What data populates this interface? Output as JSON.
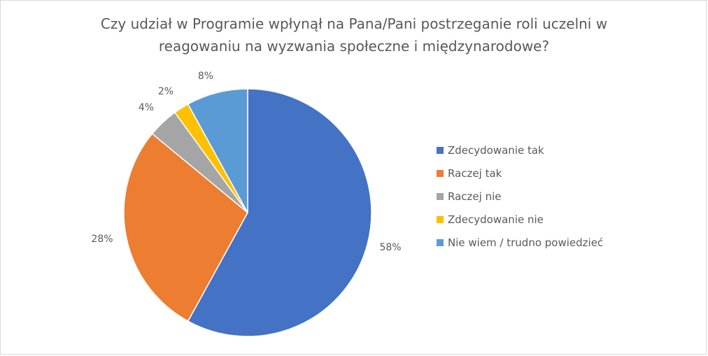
{
  "chart_data": {
    "type": "pie",
    "title_lines": [
      "Czy udział w Programie wpłynął na Pana/Pani postrzeganie roli uczelni w",
      "reagowaniu na wyzwania społeczne i międzynarodowe?"
    ],
    "categories": [
      "Zdecydowanie tak",
      "Raczej tak",
      "Raczej nie",
      "Zdecydowanie nie",
      "Nie wiem / trudno powiedzieć"
    ],
    "values": [
      58,
      28,
      4,
      2,
      8
    ],
    "labels": [
      "58%",
      "28%",
      "4%",
      "2%",
      "8%"
    ],
    "colors": [
      "#4472C4",
      "#ED7D31",
      "#A5A5A5",
      "#FFC000",
      "#5B9BD5"
    ],
    "legend_position": "right"
  }
}
